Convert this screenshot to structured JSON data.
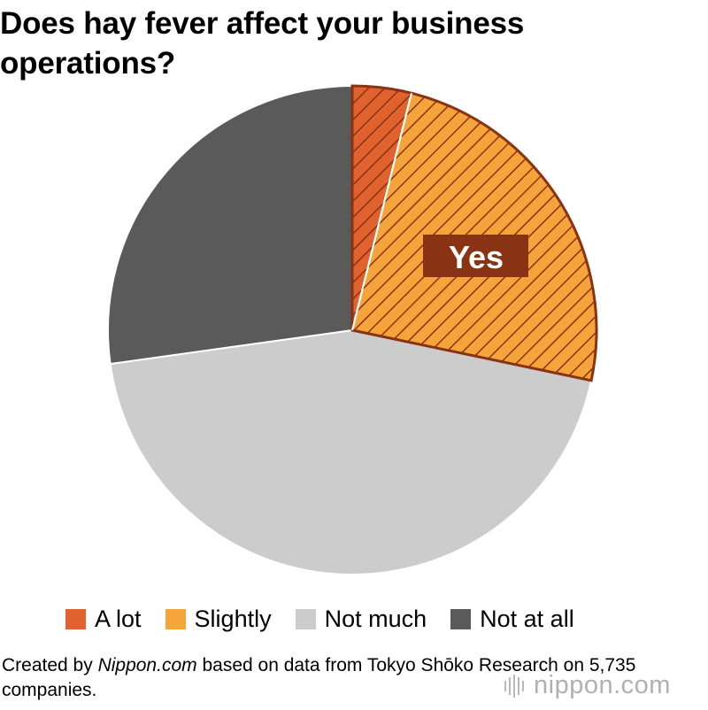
{
  "title": "Does hay fever affect your business operations?",
  "chart_data": {
    "type": "pie",
    "slices": [
      {
        "name": "A lot",
        "value": 3.9,
        "color": "#e0622e",
        "hatched": true
      },
      {
        "name": "Slightly",
        "value": 24.4,
        "color": "#f5a33b",
        "hatched": true
      },
      {
        "name": "Not much",
        "value": 44.5,
        "color": "#cccccc",
        "hatched": false
      },
      {
        "name": "Not at all",
        "value": 27.2,
        "color": "#5a5a5a",
        "hatched": false
      }
    ],
    "annotation": "Yes",
    "annotation_color": "#8a3214",
    "legend_position": "bottom"
  },
  "source": {
    "prefix": "Created by ",
    "site": "Nippon.com",
    "suffix": " based on data from Tokyo Shōko Research on 5,735 companies."
  },
  "logo": {
    "text": "nippon.com"
  }
}
